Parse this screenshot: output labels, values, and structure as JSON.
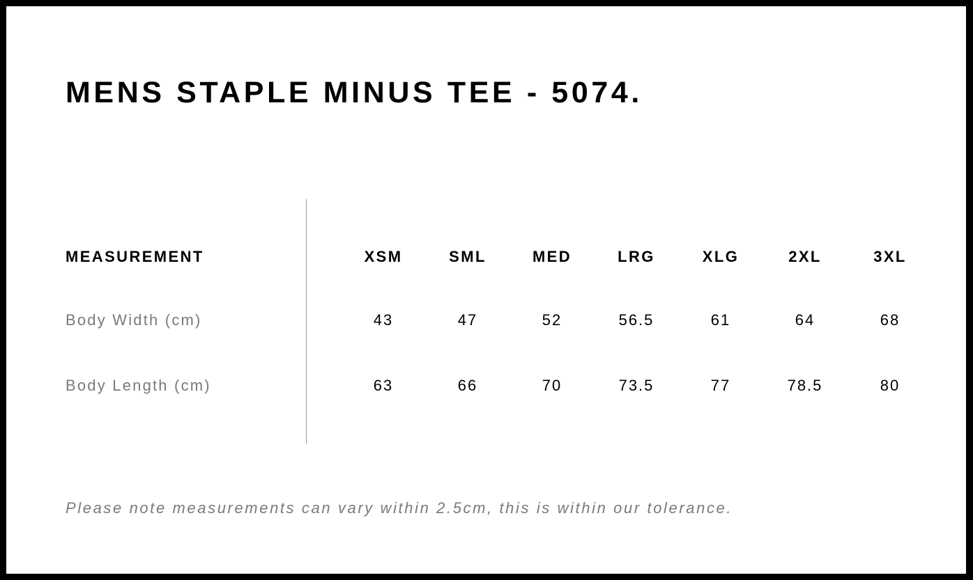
{
  "title": "MENS STAPLE MINUS TEE - 5074.",
  "table": {
    "header_label": "MEASUREMENT",
    "sizes": [
      "XSM",
      "SML",
      "MED",
      "LRG",
      "XLG",
      "2XL",
      "3XL"
    ],
    "rows": [
      {
        "label": "Body Width (cm)",
        "values": [
          "43",
          "47",
          "52",
          "56.5",
          "61",
          "64",
          "68"
        ]
      },
      {
        "label": "Body Length (cm)",
        "values": [
          "63",
          "66",
          "70",
          "73.5",
          "77",
          "78.5",
          "80"
        ]
      }
    ]
  },
  "note": "Please note measurements can vary within 2.5cm, this is within our tolerance."
}
